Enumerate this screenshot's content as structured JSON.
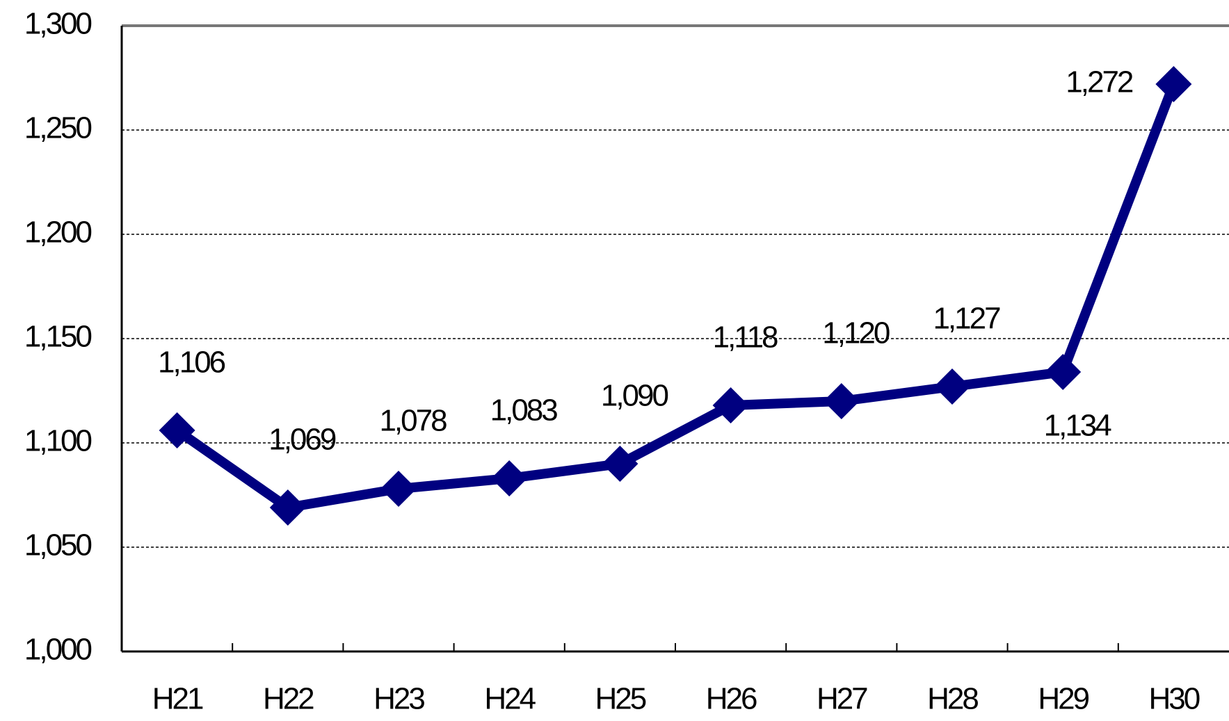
{
  "chart_data": {
    "type": "line",
    "categories": [
      "H21",
      "H22",
      "H23",
      "H24",
      "H25",
      "H26",
      "H27",
      "H28",
      "H29",
      "H30"
    ],
    "series": [
      {
        "color": "#000080",
        "values": [
          1106,
          1069,
          1078,
          1083,
          1090,
          1118,
          1120,
          1127,
          1134,
          1272
        ],
        "value_labels": [
          "1,106",
          "1,069",
          "1,078",
          "1,083",
          "1,090",
          "1,118",
          "1,120",
          "1,127",
          "1,134",
          "1,272"
        ]
      }
    ],
    "ylim": [
      1000,
      1300
    ],
    "yticks": [
      {
        "value": 1000,
        "label": "1,000"
      },
      {
        "value": 1050,
        "label": "1,050"
      },
      {
        "value": 1100,
        "label": "1,100"
      },
      {
        "value": 1150,
        "label": "1,150"
      },
      {
        "value": 1200,
        "label": "1,200"
      },
      {
        "value": 1250,
        "label": "1,250"
      },
      {
        "value": 1300,
        "label": "1,300"
      }
    ],
    "grid": true
  }
}
